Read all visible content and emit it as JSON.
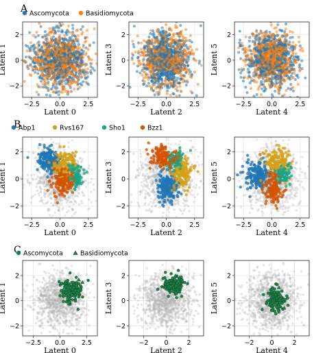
{
  "colors": {
    "ascomycota": "#1f77b4",
    "basidiomycota": "#ff7f0e",
    "abp1": "#1f77b4",
    "rvs167": "#d4a017",
    "sho1": "#17a589",
    "bzz1": "#d35400",
    "background": "#b0b0b0",
    "c_marker": "#1e8449",
    "grid": "#e6e6e6"
  },
  "chart_data": [
    {
      "panel": "A",
      "type": "scatter",
      "legend": [
        {
          "name": "Ascomycota",
          "marker": "circle",
          "color_key": "ascomycota"
        },
        {
          "name": "Basidiomycota",
          "marker": "circle",
          "color_key": "basidiomycota"
        }
      ],
      "legend_position": "top-left",
      "subplots": [
        {
          "xlabel": "Latent 0",
          "ylabel": "Latent 1",
          "xticks": [
            "−2.5",
            "0.0",
            "2.5"
          ],
          "yticks": [
            "−2",
            "0",
            "2"
          ],
          "xlim": [
            -3.3,
            3.3
          ],
          "ylim": [
            -2.9,
            3.0
          ],
          "center": [
            0,
            0
          ],
          "spread": [
            1.2,
            1.1
          ]
        },
        {
          "xlabel": "Latent 2",
          "ylabel": "Latent 3",
          "xticks": [
            "−2.5",
            "0.0",
            "2.5"
          ],
          "yticks": [
            "−2",
            "0",
            "2"
          ],
          "xlim": [
            -3.3,
            3.3
          ],
          "ylim": [
            -2.9,
            3.0
          ],
          "center": [
            0,
            0
          ],
          "spread": [
            1.1,
            1.1
          ]
        },
        {
          "xlabel": "Latent 4",
          "ylabel": "Latent 5",
          "xticks": [
            "−2.5",
            "0.0",
            "2.5"
          ],
          "yticks": [
            "−2",
            "0",
            "2"
          ],
          "xlim": [
            -3.3,
            3.3
          ],
          "ylim": [
            -2.9,
            3.0
          ],
          "center": [
            0,
            0
          ],
          "spread": [
            1.1,
            1.1
          ]
        }
      ],
      "series": [
        {
          "name": "Ascomycota",
          "color_key": "ascomycota",
          "count": 700
        },
        {
          "name": "Basidiomycota",
          "color_key": "basidiomycota",
          "count": 650
        }
      ]
    },
    {
      "panel": "B",
      "type": "scatter",
      "legend": [
        {
          "name": "Abp1",
          "marker": "circle",
          "color_key": "abp1"
        },
        {
          "name": "Rvs167",
          "marker": "circle",
          "color_key": "rvs167"
        },
        {
          "name": "Sho1",
          "marker": "circle",
          "color_key": "sho1"
        },
        {
          "name": "Bzz1",
          "marker": "circle",
          "color_key": "bzz1"
        }
      ],
      "legend_position": "top-left",
      "subplots": [
        {
          "xlabel": "Latent 0",
          "ylabel": "Latent 1",
          "xticks": [
            "−2.5",
            "0.0",
            "2.5"
          ],
          "yticks": [
            "−2",
            "0",
            "2"
          ],
          "xlim": [
            -3.3,
            3.3
          ],
          "ylim": [
            -2.9,
            3.1
          ],
          "clusters": [
            {
              "series": "Abp1",
              "center": [
                -0.9,
                1.4
              ],
              "spread": [
                0.55,
                0.45
              ]
            },
            {
              "series": "Rvs167",
              "center": [
                0.5,
                1.0
              ],
              "spread": [
                0.5,
                0.45
              ]
            },
            {
              "series": "Sho1",
              "center": [
                1.4,
                0.2
              ],
              "spread": [
                0.35,
                0.45
              ]
            },
            {
              "series": "Bzz1",
              "center": [
                0.2,
                -0.3
              ],
              "spread": [
                0.5,
                0.5
              ]
            }
          ]
        },
        {
          "xlabel": "Latent 2",
          "ylabel": "Latent 3",
          "xticks": [
            "−2.5",
            "0.0",
            "2.5"
          ],
          "yticks": [
            "−2",
            "0",
            "2"
          ],
          "xlim": [
            -3.3,
            3.3
          ],
          "ylim": [
            -2.9,
            3.1
          ],
          "clusters": [
            {
              "series": "Abp1",
              "center": [
                0.2,
                -0.6
              ],
              "spread": [
                0.45,
                0.55
              ]
            },
            {
              "series": "Rvs167",
              "center": [
                1.4,
                0.6
              ],
              "spread": [
                0.5,
                0.6
              ]
            },
            {
              "series": "Sho1",
              "center": [
                0.8,
                1.4
              ],
              "spread": [
                0.4,
                0.3
              ]
            },
            {
              "series": "Bzz1",
              "center": [
                -0.4,
                1.6
              ],
              "spread": [
                0.55,
                0.4
              ]
            }
          ]
        },
        {
          "xlabel": "Latent 4",
          "ylabel": "Latent 5",
          "xticks": [
            "−2.5",
            "0.0",
            "2.5"
          ],
          "yticks": [
            "−2",
            "0",
            "2"
          ],
          "xlim": [
            -3.3,
            3.3
          ],
          "ylim": [
            -2.9,
            3.1
          ],
          "clusters": [
            {
              "series": "Abp1",
              "center": [
                -1.2,
                0.3
              ],
              "spread": [
                0.6,
                0.55
              ]
            },
            {
              "series": "Rvs167",
              "center": [
                0.5,
                1.2
              ],
              "spread": [
                0.55,
                0.6
              ]
            },
            {
              "series": "Sho1",
              "center": [
                0.9,
                0.3
              ],
              "spread": [
                0.35,
                0.3
              ]
            },
            {
              "series": "Bzz1",
              "center": [
                0.1,
                -0.9
              ],
              "spread": [
                0.4,
                0.6
              ]
            }
          ]
        }
      ],
      "series": [
        {
          "name": "Abp1",
          "color_key": "abp1",
          "count": 200
        },
        {
          "name": "Rvs167",
          "color_key": "rvs167",
          "count": 170
        },
        {
          "name": "Sho1",
          "color_key": "sho1",
          "count": 80
        },
        {
          "name": "Bzz1",
          "color_key": "bzz1",
          "count": 130
        }
      ]
    },
    {
      "panel": "C",
      "type": "scatter",
      "legend": [
        {
          "name": "Ascomycota",
          "marker": "circle",
          "color_key": "c_marker"
        },
        {
          "name": "Basidiomycota",
          "marker": "triangle",
          "color_key": "c_marker"
        }
      ],
      "legend_position": "top-left",
      "subplots": [
        {
          "xlabel": "Latent 0",
          "ylabel": "Latent 1",
          "xticks": [
            "−2.5",
            "0.0",
            "2.5"
          ],
          "yticks": [
            "−2",
            "0",
            "2"
          ],
          "xlim": [
            -3.5,
            3.5
          ],
          "ylim": [
            -2.8,
            3.2
          ],
          "cluster_center": [
            1.0,
            0.8
          ],
          "cluster_spread": [
            0.5,
            0.45
          ]
        },
        {
          "xlabel": "Latent 2",
          "ylabel": "Latent 3",
          "xticks": [
            "−2",
            "0",
            "2"
          ],
          "yticks": [
            "−2",
            "0",
            "2"
          ],
          "xlim": [
            -3.3,
            3.3
          ],
          "ylim": [
            -2.8,
            3.2
          ],
          "cluster_center": [
            0.6,
            1.3
          ],
          "cluster_spread": [
            0.45,
            0.35
          ]
        },
        {
          "xlabel": "Latent 4",
          "ylabel": "Latent 5",
          "xticks": [
            "−2",
            "0",
            "2"
          ],
          "yticks": [
            "−2",
            "0",
            "2"
          ],
          "xlim": [
            -3.3,
            3.3
          ],
          "ylim": [
            -2.8,
            3.2
          ],
          "cluster_center": [
            0.3,
            0.1
          ],
          "cluster_spread": [
            0.4,
            0.45
          ]
        }
      ],
      "series": [
        {
          "name": "Ascomycota",
          "color_key": "c_marker",
          "count": 130
        },
        {
          "name": "Basidiomycota",
          "color_key": "c_marker",
          "count": 14
        }
      ]
    }
  ]
}
